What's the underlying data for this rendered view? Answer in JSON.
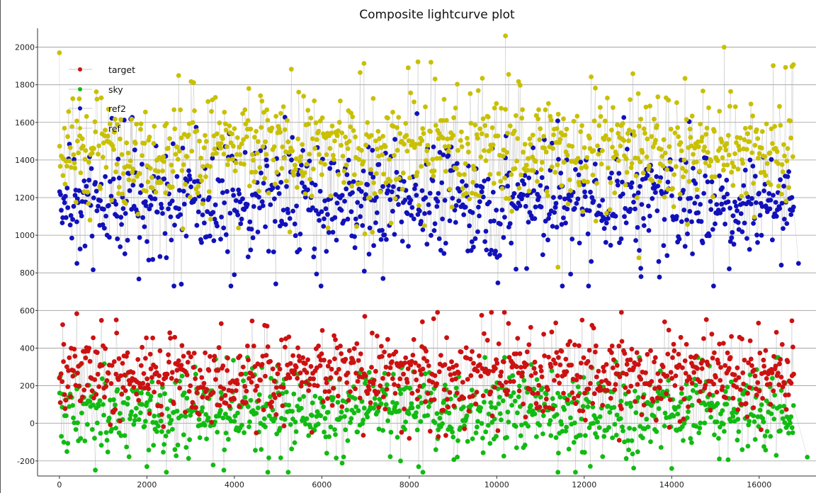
{
  "chart_data": {
    "type": "scatter",
    "title": "Composite lightcurve plot",
    "xlabel": "",
    "ylabel": "",
    "xlim": [
      -500,
      17300
    ],
    "ylim": [
      -280,
      2100
    ],
    "xticks": [
      0,
      2000,
      4000,
      6000,
      8000,
      10000,
      12000,
      14000,
      16000
    ],
    "yticks": [
      -200,
      0,
      200,
      400,
      600,
      800,
      1000,
      1200,
      1400,
      1600,
      1800,
      2000
    ],
    "grid": true,
    "legend_position": "top-left",
    "n_points": 17200,
    "series": [
      {
        "name": "target",
        "color": "#cc1111",
        "style": "points-with-lines",
        "center": 260,
        "spread": 95,
        "min": -100,
        "max": 590,
        "sample": [
          [
            100,
            420
          ],
          [
            1300,
            550
          ],
          [
            3700,
            530
          ],
          [
            8300,
            540
          ],
          [
            12850,
            590
          ],
          [
            16750,
            545
          ],
          [
            8000,
            -80
          ],
          [
            12800,
            -90
          ]
        ]
      },
      {
        "name": "sky",
        "color": "#11bb11",
        "style": "points-with-lines",
        "center": 60,
        "spread": 95,
        "min": -260,
        "max": 350,
        "sample": [
          [
            2000,
            -230
          ],
          [
            3300,
            0
          ],
          [
            7800,
            -200
          ],
          [
            11400,
            -260
          ],
          [
            14000,
            -240
          ],
          [
            17100,
            -180
          ]
        ]
      },
      {
        "name": "ref2",
        "color": "#1111bb",
        "style": "points-with-lines",
        "center": 1180,
        "spread": 130,
        "min": 730,
        "max": 1850,
        "sample": [
          [
            400,
            850
          ],
          [
            4000,
            790
          ],
          [
            7400,
            770
          ],
          [
            11500,
            730
          ],
          [
            13300,
            780
          ],
          [
            16900,
            850
          ]
        ]
      },
      {
        "name": "ref",
        "color": "#c8c000",
        "style": "points-with-lines",
        "center": 1460,
        "spread": 130,
        "min": 820,
        "max": 2060,
        "sample": [
          [
            0,
            1970
          ],
          [
            10200,
            2060
          ],
          [
            15200,
            2000
          ],
          [
            11400,
            830
          ],
          [
            13250,
            880
          ]
        ]
      }
    ]
  }
}
